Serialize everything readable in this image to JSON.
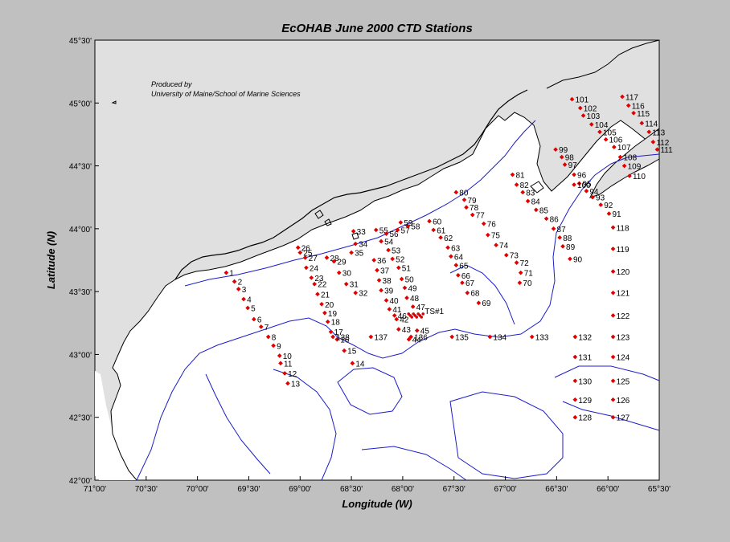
{
  "title": "EcOHAB   June 2000 CTD Stations",
  "xlabel": "Longitude (W)",
  "ylabel": "Latitude (N)",
  "credit": [
    "Produced by",
    "University of Maine/School of Marine Sciences"
  ],
  "lon_range": [
    -71.0,
    -65.5
  ],
  "lat_range": [
    42.0,
    45.5
  ],
  "xticks": [
    "71°00'",
    "70°30'",
    "70°00'",
    "69°30'",
    "69°00'",
    "68°30'",
    "68°00'",
    "67°30'",
    "67°00'",
    "66°30'",
    "66°00'",
    "65°30'"
  ],
  "yticks": [
    "45°30'",
    "45°00'",
    "44°30'",
    "44°00'",
    "43°30'",
    "43°00'",
    "42°30'",
    "42°00'"
  ],
  "colors": {
    "station": "#e00000",
    "isobath": "#1c1cc8",
    "coast": "#000000",
    "land": "#e0e0e0",
    "water": "#ffffff",
    "background": "#c0c0c0"
  },
  "station_extra_label": "TS#1",
  "chart_data": {
    "type": "scatter",
    "title": "EcOHAB   June 2000 CTD Stations",
    "xlabel": "Longitude (W)",
    "ylabel": "Latitude (N)",
    "xlim": [
      -71.0,
      -65.5
    ],
    "ylim": [
      42.0,
      45.5
    ],
    "grid": false,
    "stations": [
      {
        "label": "1",
        "lon": -69.72,
        "lat": 43.65
      },
      {
        "label": "2",
        "lon": -69.64,
        "lat": 43.58
      },
      {
        "label": "3",
        "lon": -69.6,
        "lat": 43.52
      },
      {
        "label": "4",
        "lon": -69.55,
        "lat": 43.44
      },
      {
        "label": "5",
        "lon": -69.51,
        "lat": 43.37
      },
      {
        "label": "6",
        "lon": -69.45,
        "lat": 43.28
      },
      {
        "label": "7",
        "lon": -69.38,
        "lat": 43.22
      },
      {
        "label": "8",
        "lon": -69.31,
        "lat": 43.14
      },
      {
        "label": "9",
        "lon": -69.26,
        "lat": 43.07
      },
      {
        "label": "10",
        "lon": -69.2,
        "lat": 42.99
      },
      {
        "label": "11",
        "lon": -69.19,
        "lat": 42.93
      },
      {
        "label": "12",
        "lon": -69.15,
        "lat": 42.85
      },
      {
        "label": "13",
        "lon": -69.12,
        "lat": 42.77
      },
      {
        "label": "14",
        "lon": -68.49,
        "lat": 42.93
      },
      {
        "label": "15",
        "lon": -68.57,
        "lat": 43.03
      },
      {
        "label": "16",
        "lon": -68.64,
        "lat": 43.12
      },
      {
        "label": "17",
        "lon": -68.7,
        "lat": 43.18
      },
      {
        "label": "18",
        "lon": -68.73,
        "lat": 43.26
      },
      {
        "label": "19",
        "lon": -68.76,
        "lat": 43.33
      },
      {
        "label": "20",
        "lon": -68.79,
        "lat": 43.4
      },
      {
        "label": "21",
        "lon": -68.83,
        "lat": 43.48
      },
      {
        "label": "22",
        "lon": -68.86,
        "lat": 43.56
      },
      {
        "label": "23",
        "lon": -68.89,
        "lat": 43.61
      },
      {
        "label": "24",
        "lon": -68.94,
        "lat": 43.69
      },
      {
        "label": "25",
        "lon": -69.0,
        "lat": 43.81
      },
      {
        "label": "26",
        "lon": -69.02,
        "lat": 43.85
      },
      {
        "label": "27",
        "lon": -68.95,
        "lat": 43.77
      },
      {
        "label": "28",
        "lon": -68.74,
        "lat": 43.77
      },
      {
        "label": "29",
        "lon": -68.67,
        "lat": 43.74
      },
      {
        "label": "30",
        "lon": -68.62,
        "lat": 43.65
      },
      {
        "label": "31",
        "lon": -68.55,
        "lat": 43.56
      },
      {
        "label": "32",
        "lon": -68.46,
        "lat": 43.49
      },
      {
        "label": "33",
        "lon": -68.48,
        "lat": 43.98
      },
      {
        "label": "34",
        "lon": -68.46,
        "lat": 43.88
      },
      {
        "label": "35",
        "lon": -68.5,
        "lat": 43.81
      },
      {
        "label": "36",
        "lon": -68.28,
        "lat": 43.75
      },
      {
        "label": "37",
        "lon": -68.25,
        "lat": 43.67
      },
      {
        "label": "38",
        "lon": -68.23,
        "lat": 43.59
      },
      {
        "label": "39",
        "lon": -68.21,
        "lat": 43.51
      },
      {
        "label": "40",
        "lon": -68.16,
        "lat": 43.43
      },
      {
        "label": "41",
        "lon": -68.13,
        "lat": 43.36
      },
      {
        "label": "42",
        "lon": -68.06,
        "lat": 43.28
      },
      {
        "label": "43",
        "lon": -68.04,
        "lat": 43.2
      },
      {
        "label": "44",
        "lon": -67.94,
        "lat": 43.12
      },
      {
        "label": "45",
        "lon": -67.86,
        "lat": 43.19
      },
      {
        "label": "46",
        "lon": -68.08,
        "lat": 43.31
      },
      {
        "label": "47",
        "lon": -67.9,
        "lat": 43.38
      },
      {
        "label": "48",
        "lon": -67.96,
        "lat": 43.45
      },
      {
        "label": "49",
        "lon": -67.98,
        "lat": 43.53
      },
      {
        "label": "50",
        "lon": -68.01,
        "lat": 43.6
      },
      {
        "label": "51",
        "lon": -68.04,
        "lat": 43.69
      },
      {
        "label": "52",
        "lon": -68.1,
        "lat": 43.76
      },
      {
        "label": "53",
        "lon": -68.14,
        "lat": 43.83
      },
      {
        "label": "54",
        "lon": -68.21,
        "lat": 43.9
      },
      {
        "label": "55",
        "lon": -68.26,
        "lat": 43.99
      },
      {
        "label": "56",
        "lon": -68.16,
        "lat": 43.96
      },
      {
        "label": "57",
        "lon": -68.05,
        "lat": 43.99
      },
      {
        "label": "58",
        "lon": -67.95,
        "lat": 44.02
      },
      {
        "label": "59",
        "lon": -68.02,
        "lat": 44.05
      },
      {
        "label": "60",
        "lon": -67.74,
        "lat": 44.06
      },
      {
        "label": "61",
        "lon": -67.7,
        "lat": 43.99
      },
      {
        "label": "62",
        "lon": -67.63,
        "lat": 43.93
      },
      {
        "label": "63",
        "lon": -67.56,
        "lat": 43.85
      },
      {
        "label": "64",
        "lon": -67.53,
        "lat": 43.78
      },
      {
        "label": "65",
        "lon": -67.48,
        "lat": 43.71
      },
      {
        "label": "66",
        "lon": -67.46,
        "lat": 43.63
      },
      {
        "label": "67",
        "lon": -67.42,
        "lat": 43.57
      },
      {
        "label": "68",
        "lon": -67.37,
        "lat": 43.49
      },
      {
        "label": "69",
        "lon": -67.26,
        "lat": 43.41
      },
      {
        "label": "70",
        "lon": -66.86,
        "lat": 43.57
      },
      {
        "label": "71",
        "lon": -66.85,
        "lat": 43.65
      },
      {
        "label": "72",
        "lon": -66.89,
        "lat": 43.73
      },
      {
        "label": "73",
        "lon": -66.99,
        "lat": 43.79
      },
      {
        "label": "74",
        "lon": -67.09,
        "lat": 43.87
      },
      {
        "label": "75",
        "lon": -67.17,
        "lat": 43.95
      },
      {
        "label": "76",
        "lon": -67.21,
        "lat": 44.04
      },
      {
        "label": "77",
        "lon": -67.32,
        "lat": 44.11
      },
      {
        "label": "78",
        "lon": -67.38,
        "lat": 44.17
      },
      {
        "label": "79",
        "lon": -67.4,
        "lat": 44.23
      },
      {
        "label": "80",
        "lon": -67.48,
        "lat": 44.29
      },
      {
        "label": "81",
        "lon": -66.93,
        "lat": 44.43
      },
      {
        "label": "82",
        "lon": -66.89,
        "lat": 44.35
      },
      {
        "label": "83",
        "lon": -66.83,
        "lat": 44.29
      },
      {
        "label": "84",
        "lon": -66.78,
        "lat": 44.22
      },
      {
        "label": "85",
        "lon": -66.7,
        "lat": 44.15
      },
      {
        "label": "86",
        "lon": -66.6,
        "lat": 44.08
      },
      {
        "label": "87",
        "lon": -66.53,
        "lat": 44.0
      },
      {
        "label": "88",
        "lon": -66.47,
        "lat": 43.93
      },
      {
        "label": "89",
        "lon": -66.44,
        "lat": 43.86
      },
      {
        "label": "90",
        "lon": -66.37,
        "lat": 43.76
      },
      {
        "label": "91",
        "lon": -65.99,
        "lat": 44.12
      },
      {
        "label": "92",
        "lon": -66.07,
        "lat": 44.19
      },
      {
        "label": "93",
        "lon": -66.15,
        "lat": 44.25
      },
      {
        "label": "94",
        "lon": -66.21,
        "lat": 44.3
      },
      {
        "label": "95",
        "lon": -66.28,
        "lat": 44.36
      },
      {
        "label": "96",
        "lon": -66.33,
        "lat": 44.43
      },
      {
        "label": "97",
        "lon": -66.42,
        "lat": 44.51
      },
      {
        "label": "98",
        "lon": -66.45,
        "lat": 44.57
      },
      {
        "label": "99",
        "lon": -66.51,
        "lat": 44.63
      },
      {
        "label": "100",
        "lon": -66.33,
        "lat": 44.35
      },
      {
        "label": "101",
        "lon": -66.35,
        "lat": 45.03
      },
      {
        "label": "102",
        "lon": -66.27,
        "lat": 44.96
      },
      {
        "label": "103",
        "lon": -66.24,
        "lat": 44.9
      },
      {
        "label": "104",
        "lon": -66.16,
        "lat": 44.83
      },
      {
        "label": "105",
        "lon": -66.08,
        "lat": 44.77
      },
      {
        "label": "106",
        "lon": -66.02,
        "lat": 44.71
      },
      {
        "label": "107",
        "lon": -65.94,
        "lat": 44.65
      },
      {
        "label": "108",
        "lon": -65.88,
        "lat": 44.57
      },
      {
        "label": "109",
        "lon": -65.84,
        "lat": 44.5
      },
      {
        "label": "110",
        "lon": -65.79,
        "lat": 44.42
      },
      {
        "label": "111",
        "lon": -65.52,
        "lat": 44.63
      },
      {
        "label": "112",
        "lon": -65.56,
        "lat": 44.69
      },
      {
        "label": "113",
        "lon": -65.6,
        "lat": 44.77
      },
      {
        "label": "114",
        "lon": -65.67,
        "lat": 44.84
      },
      {
        "label": "115",
        "lon": -65.75,
        "lat": 44.92
      },
      {
        "label": "116",
        "lon": -65.8,
        "lat": 44.98
      },
      {
        "label": "117",
        "lon": -65.86,
        "lat": 45.05
      },
      {
        "label": "118",
        "lon": -65.95,
        "lat": 44.01
      },
      {
        "label": "119",
        "lon": -65.95,
        "lat": 43.84
      },
      {
        "label": "120",
        "lon": -65.95,
        "lat": 43.66
      },
      {
        "label": "121",
        "lon": -65.95,
        "lat": 43.49
      },
      {
        "label": "122",
        "lon": -65.95,
        "lat": 43.31
      },
      {
        "label": "123",
        "lon": -65.95,
        "lat": 43.14
      },
      {
        "label": "124",
        "lon": -65.95,
        "lat": 42.98
      },
      {
        "label": "125",
        "lon": -65.95,
        "lat": 42.79
      },
      {
        "label": "126",
        "lon": -65.95,
        "lat": 42.64
      },
      {
        "label": "127",
        "lon": -65.95,
        "lat": 42.5
      },
      {
        "label": "128",
        "lon": -66.32,
        "lat": 42.5
      },
      {
        "label": "129",
        "lon": -66.32,
        "lat": 42.64
      },
      {
        "label": "130",
        "lon": -66.32,
        "lat": 42.79
      },
      {
        "label": "131",
        "lon": -66.32,
        "lat": 42.98
      },
      {
        "label": "132",
        "lon": -66.32,
        "lat": 43.14
      },
      {
        "label": "133",
        "lon": -66.74,
        "lat": 43.14
      },
      {
        "label": "134",
        "lon": -67.15,
        "lat": 43.14
      },
      {
        "label": "135",
        "lon": -67.52,
        "lat": 43.14
      },
      {
        "label": "136",
        "lon": -67.92,
        "lat": 43.14
      },
      {
        "label": "137",
        "lon": -68.31,
        "lat": 43.14
      },
      {
        "label": "138",
        "lon": -68.68,
        "lat": 43.14
      }
    ]
  }
}
